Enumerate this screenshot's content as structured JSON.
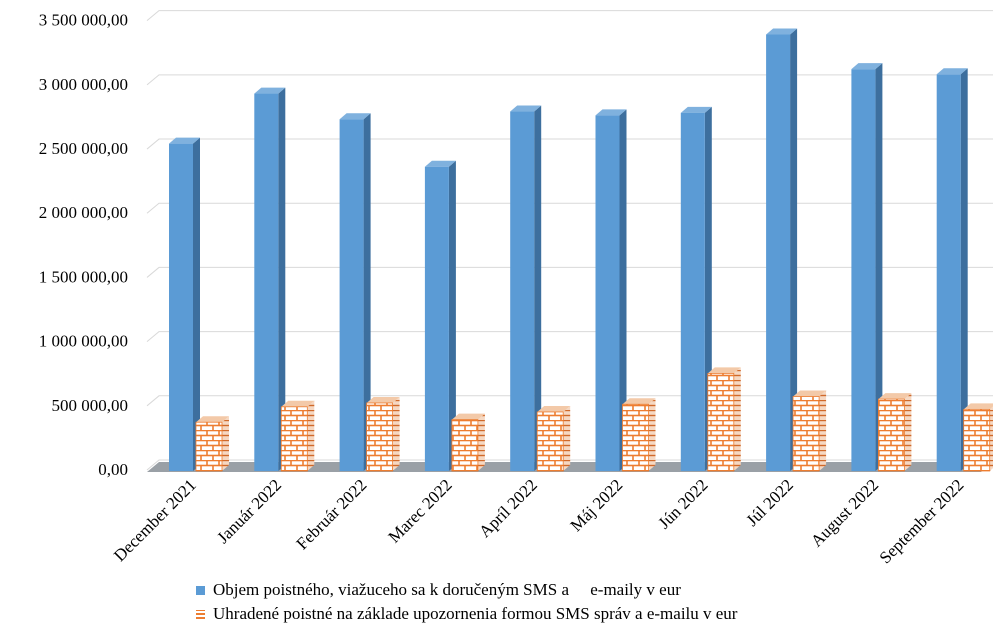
{
  "chart_data": {
    "type": "bar",
    "categories": [
      "December 2021",
      "Január 2022",
      "Február 2022",
      "Marec 2022",
      "Apríl 2022",
      "Máj 2022",
      "Jún 2022",
      "Júl 2022",
      "August 2022",
      "September 2022"
    ],
    "series": [
      {
        "name": "Objem poistného, viažuceho sa k doručeným SMS a     e-maily v eur",
        "color": "#5b9bd5",
        "pattern": "solid",
        "values": [
          2550000,
          2940000,
          2740000,
          2370000,
          2800000,
          2770000,
          2790000,
          3400000,
          3130000,
          3090000
        ]
      },
      {
        "name": "Uhradené poistné na základe upozornenia formou SMS správ a e-mailu v eur",
        "color": "#ed7d31",
        "pattern": "brick",
        "values": [
          380000,
          500000,
          530000,
          400000,
          460000,
          520000,
          760000,
          580000,
          560000,
          480000
        ]
      }
    ],
    "yticks": [
      "0,00",
      "500 000,00",
      "1 000 000,00",
      "1 500 000,00",
      "2 000 000,00",
      "2 500 000,00",
      "3 000 000,00",
      "3 500 000,00"
    ],
    "ylim": [
      0,
      3500000
    ],
    "grid": true,
    "legend_position": "bottom",
    "chart_style": "3d-column"
  }
}
